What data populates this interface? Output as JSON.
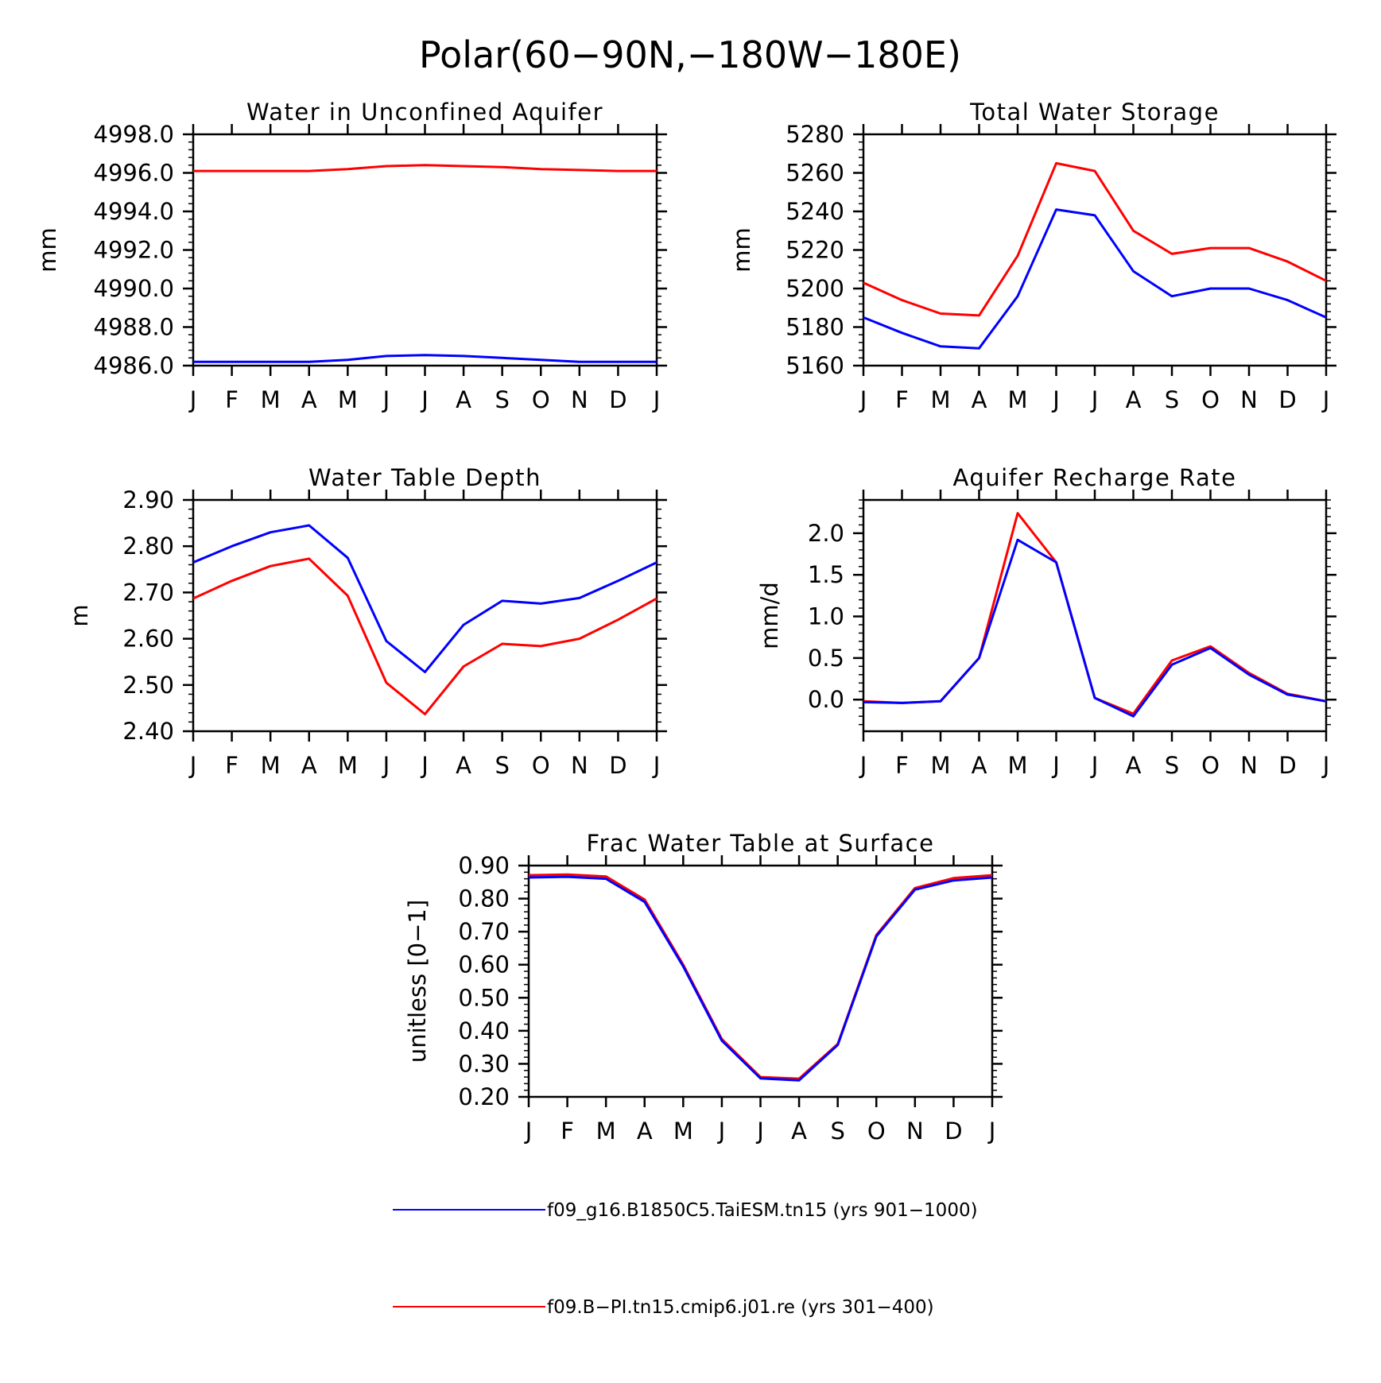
{
  "figure_title": "Polar(60−90N,−180W−180E)",
  "colors": {
    "series1": "#0000ff",
    "series2": "#ff0000",
    "axes": "#000000"
  },
  "legend": [
    {
      "label": "f09_g16.B1850C5.TaiESM.tn15 (yrs 901−1000)",
      "color": "#0000ff"
    },
    {
      "label": "f09.B−PI.tn15.cmip6.j01.re (yrs 301−400)",
      "color": "#ff0000"
    }
  ],
  "chart_data": [
    {
      "type": "line",
      "title": "Water in Unconfined Aquifer",
      "ylabel": "mm",
      "categories": [
        "J",
        "F",
        "M",
        "A",
        "M",
        "J",
        "J",
        "A",
        "S",
        "O",
        "N",
        "D",
        "J"
      ],
      "ylim": [
        4986.0,
        4998.0
      ],
      "yticks": [
        "4986.0",
        "4988.0",
        "4990.0",
        "4992.0",
        "4994.0",
        "4996.0",
        "4998.0"
      ],
      "series": [
        {
          "name": "f09_g16.B1850C5.TaiESM.tn15 (yrs 901−1000)",
          "color": "#0000ff",
          "values": [
            4986.2,
            4986.2,
            4986.2,
            4986.2,
            4986.3,
            4986.5,
            4986.55,
            4986.5,
            4986.4,
            4986.3,
            4986.2,
            4986.2,
            4986.2
          ]
        },
        {
          "name": "f09.B−PI.tn15.cmip6.j01.re (yrs 301−400)",
          "color": "#ff0000",
          "values": [
            4996.1,
            4996.1,
            4996.1,
            4996.1,
            4996.2,
            4996.35,
            4996.4,
            4996.35,
            4996.3,
            4996.2,
            4996.15,
            4996.1,
            4996.1
          ]
        }
      ]
    },
    {
      "type": "line",
      "title": "Total Water Storage",
      "ylabel": "mm",
      "categories": [
        "J",
        "F",
        "M",
        "A",
        "M",
        "J",
        "J",
        "A",
        "S",
        "O",
        "N",
        "D",
        "J"
      ],
      "ylim": [
        5160,
        5280
      ],
      "yticks": [
        "5160",
        "5180",
        "5200",
        "5220",
        "5240",
        "5260",
        "5280"
      ],
      "series": [
        {
          "name": "f09_g16.B1850C5.TaiESM.tn15 (yrs 901−1000)",
          "color": "#0000ff",
          "values": [
            5185,
            5177,
            5170,
            5169,
            5196,
            5241,
            5238,
            5209,
            5196,
            5200,
            5200,
            5194,
            5185
          ]
        },
        {
          "name": "f09.B−PI.tn15.cmip6.j01.re (yrs 301−400)",
          "color": "#ff0000",
          "values": [
            5203,
            5194,
            5187,
            5186,
            5217,
            5265,
            5261,
            5230,
            5218,
            5221,
            5221,
            5214,
            5204
          ]
        }
      ]
    },
    {
      "type": "line",
      "title": "Water Table Depth",
      "ylabel": "m",
      "categories": [
        "J",
        "F",
        "M",
        "A",
        "M",
        "J",
        "J",
        "A",
        "S",
        "O",
        "N",
        "D",
        "J"
      ],
      "ylim": [
        2.4,
        2.9
      ],
      "yticks": [
        "2.40",
        "2.50",
        "2.60",
        "2.70",
        "2.80",
        "2.90"
      ],
      "series": [
        {
          "name": "f09_g16.B1850C5.TaiESM.tn15 (yrs 901−1000)",
          "color": "#0000ff",
          "values": [
            2.765,
            2.8,
            2.83,
            2.845,
            2.775,
            2.595,
            2.528,
            2.63,
            2.682,
            2.676,
            2.688,
            2.725,
            2.765
          ]
        },
        {
          "name": "f09.B−PI.tn15.cmip6.j01.re (yrs 301−400)",
          "color": "#ff0000",
          "values": [
            2.687,
            2.725,
            2.757,
            2.773,
            2.693,
            2.505,
            2.437,
            2.54,
            2.589,
            2.584,
            2.6,
            2.641,
            2.687
          ]
        }
      ]
    },
    {
      "type": "line",
      "title": "Aquifer Recharge Rate",
      "ylabel": "mm/d",
      "categories": [
        "J",
        "F",
        "M",
        "A",
        "M",
        "J",
        "J",
        "A",
        "S",
        "O",
        "N",
        "D",
        "J"
      ],
      "ylim": [
        -0.38,
        2.4
      ],
      "yticks": [
        "0.0",
        "0.5",
        "1.0",
        "1.5",
        "2.0"
      ],
      "series": [
        {
          "name": "f09_g16.B1850C5.TaiESM.tn15 (yrs 901−1000)",
          "color": "#0000ff",
          "values": [
            -0.03,
            -0.04,
            -0.02,
            0.5,
            1.92,
            1.65,
            0.02,
            -0.2,
            0.42,
            0.62,
            0.3,
            0.06,
            -0.02
          ]
        },
        {
          "name": "f09.B−PI.tn15.cmip6.j01.re (yrs 301−400)",
          "color": "#ff0000",
          "values": [
            -0.02,
            -0.04,
            -0.02,
            0.5,
            2.24,
            1.65,
            0.02,
            -0.17,
            0.47,
            0.64,
            0.32,
            0.07,
            -0.02
          ]
        }
      ]
    },
    {
      "type": "line",
      "title": "Frac Water Table at Surface",
      "ylabel": "unitless [0−1]",
      "categories": [
        "J",
        "F",
        "M",
        "A",
        "M",
        "J",
        "J",
        "A",
        "S",
        "O",
        "N",
        "D",
        "J"
      ],
      "ylim": [
        0.2,
        0.9
      ],
      "yticks": [
        "0.20",
        "0.30",
        "0.40",
        "0.50",
        "0.60",
        "0.70",
        "0.80",
        "0.90"
      ],
      "series": [
        {
          "name": "f09_g16.B1850C5.TaiESM.tn15 (yrs 901−1000)",
          "color": "#0000ff",
          "values": [
            0.864,
            0.866,
            0.86,
            0.79,
            0.595,
            0.37,
            0.256,
            0.25,
            0.357,
            0.686,
            0.827,
            0.855,
            0.864
          ]
        },
        {
          "name": "f09.B−PI.tn15.cmip6.j01.re (yrs 301−400)",
          "color": "#ff0000",
          "values": [
            0.871,
            0.873,
            0.867,
            0.797,
            0.6,
            0.375,
            0.26,
            0.255,
            0.36,
            0.69,
            0.832,
            0.862,
            0.871
          ]
        }
      ]
    }
  ]
}
